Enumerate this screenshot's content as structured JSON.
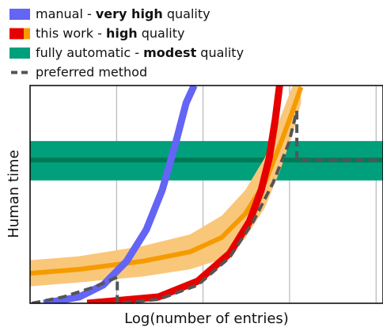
{
  "chart_data": {
    "type": "line",
    "xlabel": "Log(number of entries)",
    "ylabel": "Human time",
    "xlim": [
      0,
      102
    ],
    "ylim": [
      0,
      100
    ],
    "xticks": [
      25,
      50,
      75,
      100
    ],
    "grid": true,
    "series": [
      {
        "name": [
          "manual - ",
          "very high",
          " quality"
        ],
        "name_bold": 1,
        "color": "#6464f5",
        "x": [
          3.9,
          14.2,
          21.1,
          27.9,
          33.6,
          38.2,
          42.1,
          45.1,
          47.4
        ],
        "values": [
          0,
          2.9,
          8.4,
          19.3,
          33.8,
          52,
          73.8,
          92,
          100
        ]
      },
      {
        "name": [
          "this work - ",
          "high",
          " quality"
        ],
        "name_bold": 1,
        "color": "#e60000",
        "x": [
          16.5,
          37.1,
          48.5,
          57.7,
          63.4,
          66.8,
          69.1,
          70.9,
          72.1
        ],
        "values": [
          0,
          2.9,
          10.2,
          22.9,
          37.5,
          52,
          66.5,
          84.7,
          100
        ]
      },
      {
        "color": "#f59b00",
        "band_color": "#f9c77a",
        "x": [
          0,
          14.2,
          32.5,
          46.2,
          55.4,
          62.2,
          67.9,
          72.5,
          75.9,
          78.3
        ],
        "values": [
          13.8,
          15.6,
          19.3,
          23.6,
          30.2,
          41.1,
          55.6,
          73.8,
          88.4,
          99.3
        ],
        "low": [
          7.8,
          9.6,
          12.3,
          15.6,
          20.2,
          30,
          44,
          62,
          78,
          92
        ],
        "high": [
          19.8,
          21.6,
          26.3,
          31.6,
          40.2,
          52,
          67,
          86,
          100,
          100
        ]
      },
      {
        "name": [
          "fully automatic - ",
          "modest",
          " quality"
        ],
        "name_bold": 1,
        "color": "#007a55",
        "band_color": "#00a07c",
        "x": [
          0,
          102
        ],
        "values": [
          65.8,
          65.8
        ],
        "low": [
          56.4,
          56.4
        ],
        "high": [
          74.5,
          74.5
        ]
      },
      {
        "name": [
          "preferred method"
        ],
        "color": "#555555",
        "dashed": true,
        "x": [
          0.5,
          9.6,
          18.8,
          25.2,
          25.2,
          37.1,
          48.5,
          57.7,
          64.5,
          70.3,
          74.8,
          77.1,
          77.1,
          102
        ],
        "values": [
          0,
          2.9,
          7.6,
          12,
          0,
          1.8,
          8.4,
          21.1,
          37.5,
          55.6,
          73.8,
          88.4,
          65.8,
          65.8
        ]
      }
    ]
  }
}
